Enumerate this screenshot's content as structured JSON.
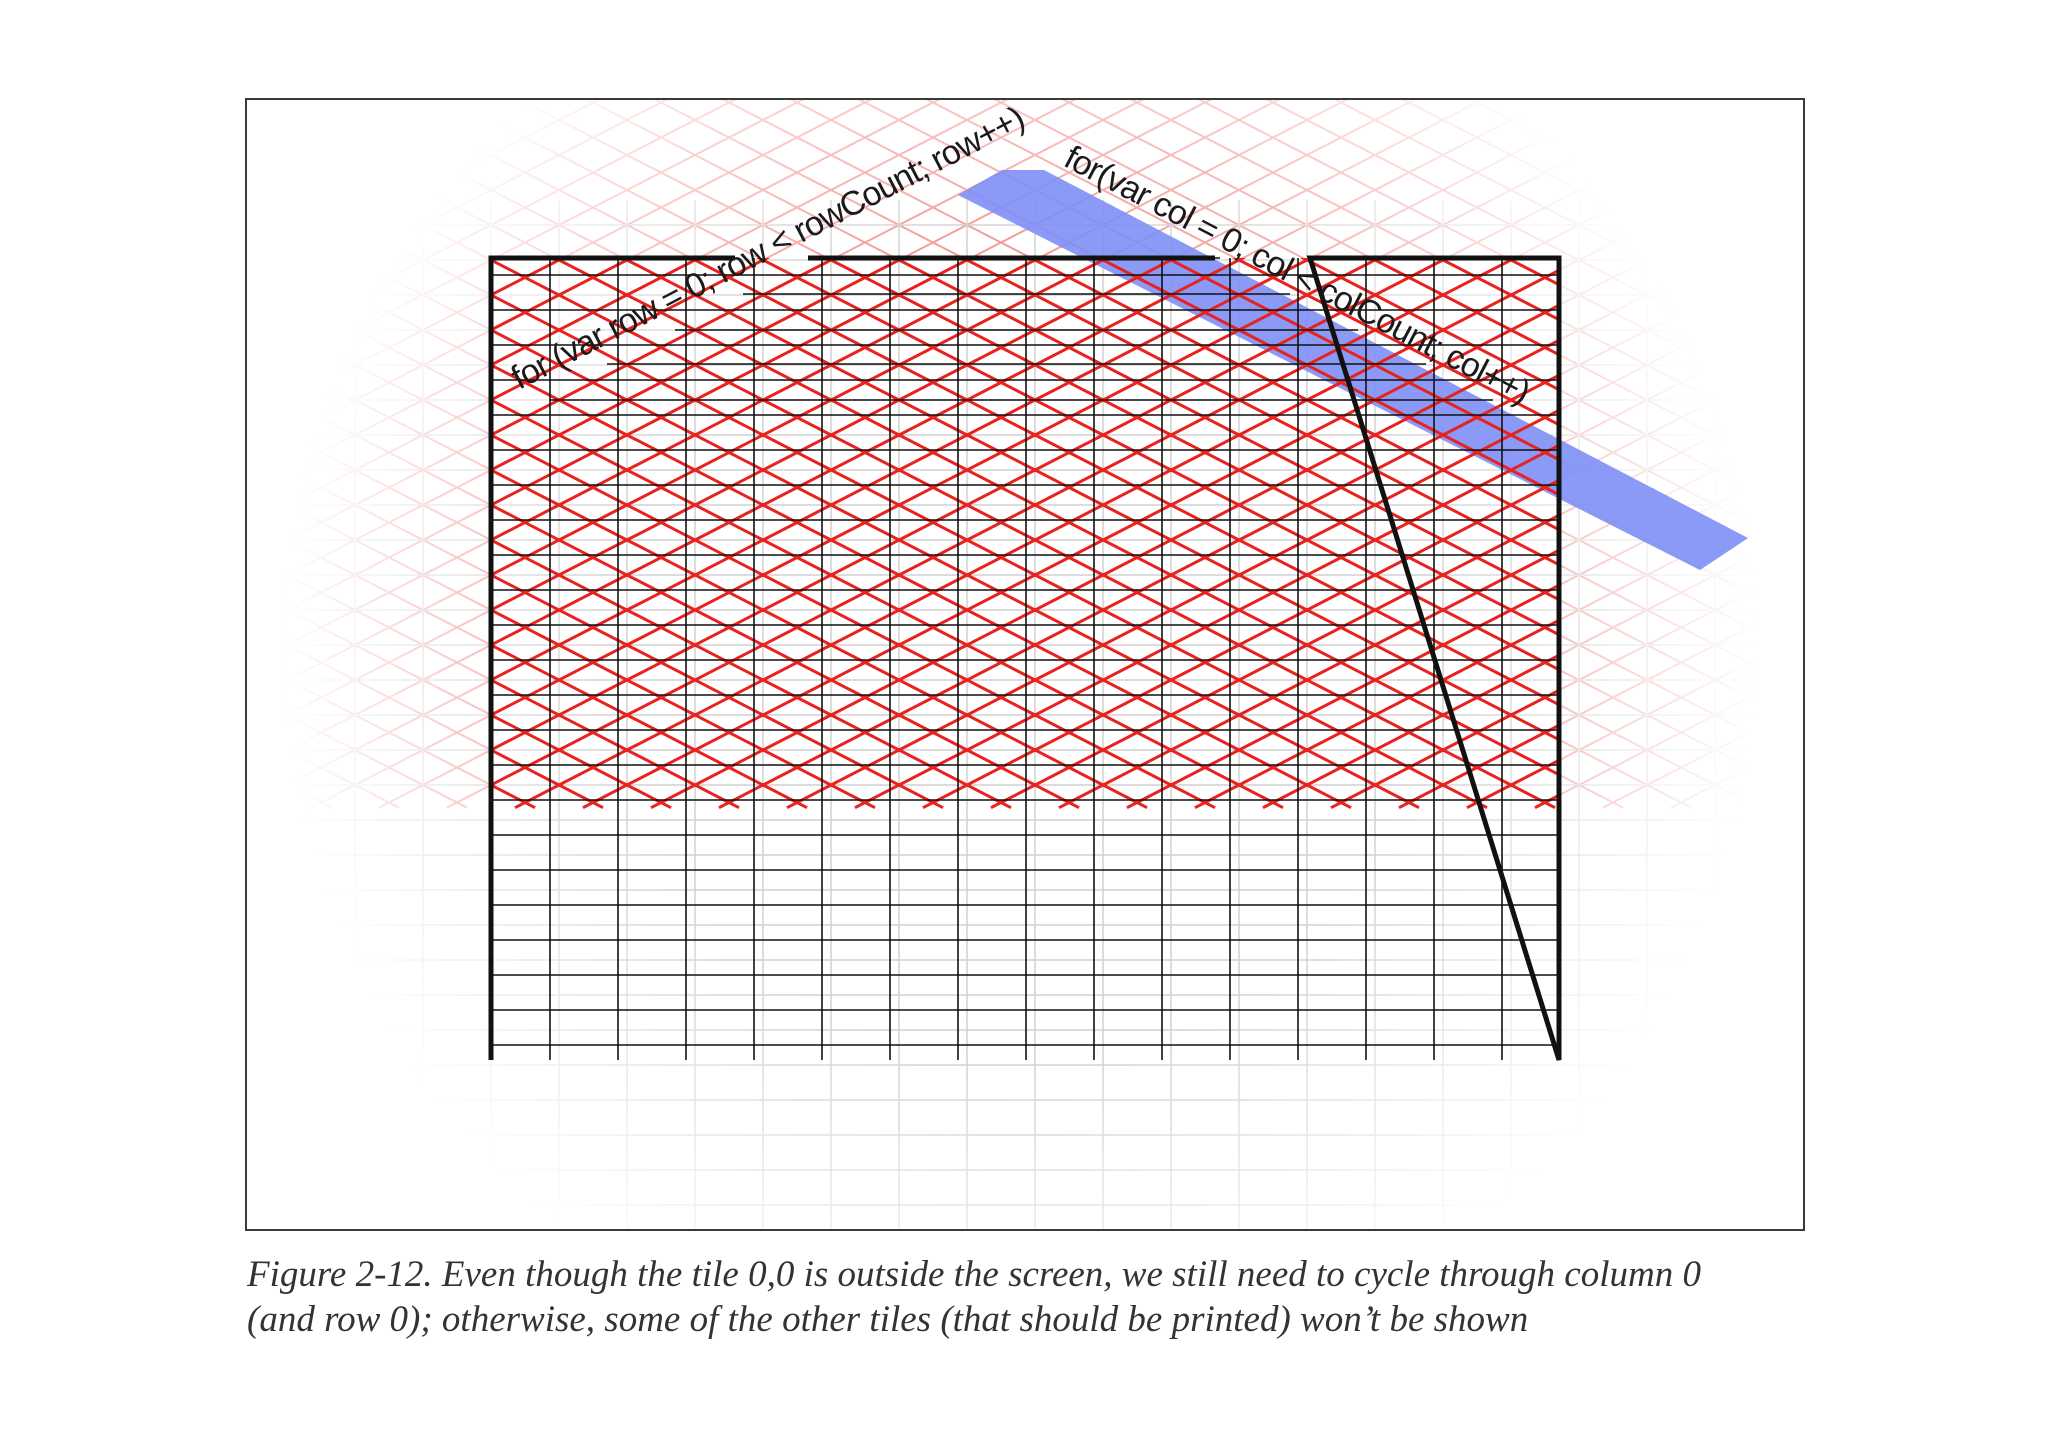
{
  "figure": {
    "row_loop_label": "for (var row = 0; row < rowCount; row++)",
    "col_loop_label": "for(var col = 0; col < colCount; col++)",
    "colors": {
      "tile_edges": "#e8221e",
      "screen_grid": "#111111",
      "column_band": "#7d8ff5",
      "frame": "#3a3a3a"
    }
  },
  "caption": {
    "line1": "Figure 2-12. Even though the tile 0,0 is outside the screen, we still need to cycle through column 0",
    "line2": "(and row 0); otherwise, some of the other tiles (that should be printed) won’t be shown"
  }
}
